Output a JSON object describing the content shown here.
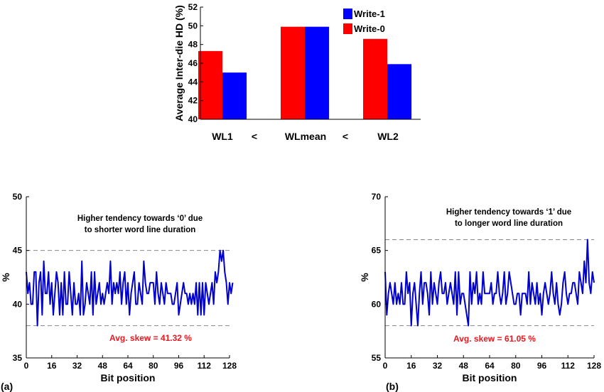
{
  "chart_data": [
    {
      "type": "bar",
      "ylabel": "Average Inter-die HD (%)",
      "ylim": [
        40,
        52
      ],
      "yticks": [
        "40",
        "42",
        "44",
        "46",
        "48",
        "50",
        "52"
      ],
      "categories": [
        "WL1",
        "WLmean",
        "WL2"
      ],
      "separators": [
        "<",
        "<"
      ],
      "series": [
        {
          "name": "Write-0",
          "color": "#ff0000",
          "values": [
            47.3,
            49.9,
            48.6
          ]
        },
        {
          "name": "Write-1",
          "color": "#0000ff",
          "values": [
            45.0,
            49.9,
            45.9
          ]
        }
      ],
      "legend_position": "top-right"
    },
    {
      "type": "line",
      "panel_label": "(a)",
      "xlabel": "Bit position",
      "ylabel": "%",
      "xlim": [
        0,
        128
      ],
      "ylim": [
        35,
        50
      ],
      "xticks": [
        "0",
        "16",
        "32",
        "48",
        "64",
        "80",
        "96",
        "112",
        "128"
      ],
      "yticks": [
        "35",
        "40",
        "45",
        "50"
      ],
      "reference_lines": [
        45,
        38
      ],
      "annotation": [
        "Higher tendency towards ‘0’ due",
        "to shorter word line duration"
      ],
      "skew_label": "Avg. skew = 41.32 %",
      "color": "#0000cc",
      "values": [
        43,
        41,
        42,
        40,
        40,
        43,
        43,
        38,
        42,
        43,
        39,
        44,
        41,
        41,
        43,
        40,
        42,
        39,
        41,
        43,
        42,
        39,
        42,
        39,
        43,
        40,
        40,
        43,
        41,
        39,
        42,
        40,
        40,
        41,
        39,
        44,
        39,
        40,
        42,
        41,
        40,
        43,
        39,
        43,
        40,
        41,
        42,
        40,
        41,
        40,
        41,
        42,
        41,
        44,
        40,
        42,
        41,
        42,
        41,
        43,
        40,
        42,
        43,
        40,
        42,
        39,
        41,
        42,
        43,
        40,
        40,
        42,
        41,
        40,
        44,
        42,
        41,
        41,
        42,
        42,
        42,
        40,
        43,
        41,
        40,
        42,
        41,
        40,
        42,
        41,
        41,
        41,
        40,
        40,
        41,
        42,
        39,
        40,
        41,
        42,
        41,
        41,
        40,
        41,
        40,
        41,
        40,
        42,
        39,
        42,
        39,
        42,
        39,
        42,
        41,
        40,
        41,
        42,
        40,
        43,
        42,
        43,
        45,
        44,
        45,
        43,
        42,
        40,
        42,
        41,
        42
      ]
    },
    {
      "type": "line",
      "panel_label": "(b)",
      "xlabel": "Bit position",
      "ylabel": "%",
      "xlim": [
        0,
        128
      ],
      "ylim": [
        55,
        70
      ],
      "xticks": [
        "0",
        "16",
        "32",
        "48",
        "64",
        "80",
        "96",
        "112",
        "128"
      ],
      "yticks": [
        "55",
        "60",
        "65",
        "70"
      ],
      "reference_lines": [
        66,
        58
      ],
      "annotation": [
        "Higher tendency towards ‘1’ due",
        "to longer word line duration"
      ],
      "skew_label": "Avg. skew = 61.05 %",
      "color": "#0000cc",
      "values": [
        63,
        59,
        61,
        62,
        61,
        60,
        62,
        60,
        61,
        60,
        62,
        60,
        60,
        63,
        61,
        62,
        58,
        61,
        62,
        60,
        58,
        61,
        63,
        60,
        62,
        62,
        61,
        59,
        63,
        60,
        62,
        61,
        60,
        62,
        63,
        61,
        61,
        62,
        60,
        61,
        62,
        61,
        60,
        63,
        59,
        63,
        60,
        61,
        61,
        60,
        59,
        58,
        63,
        60,
        62,
        61,
        63,
        60,
        61,
        60,
        63,
        61,
        61,
        61,
        61,
        62,
        60,
        61,
        61,
        63,
        61,
        60,
        61,
        63,
        60,
        61,
        63,
        62,
        61,
        60,
        60,
        61,
        61,
        59,
        61,
        61,
        61,
        60,
        63,
        60,
        62,
        61,
        60,
        62,
        60,
        61,
        59,
        61,
        62,
        61,
        60,
        61,
        63,
        61,
        60,
        62,
        60,
        59,
        60,
        62,
        63,
        61,
        60,
        61,
        61,
        62,
        62,
        61,
        60,
        63,
        62,
        61,
        64,
        62,
        66,
        62,
        61,
        63,
        62
      ]
    }
  ]
}
